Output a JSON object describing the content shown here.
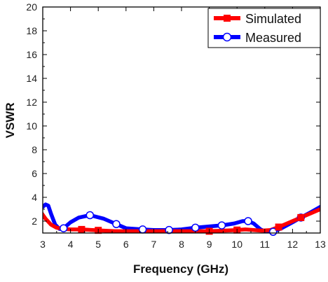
{
  "chart_data": {
    "type": "line",
    "title": "",
    "xlabel": "Frequency (GHz)",
    "ylabel": "VSWR",
    "xlim": [
      3,
      13
    ],
    "ylim": [
      1,
      20
    ],
    "x_ticks": [
      3,
      4,
      5,
      6,
      7,
      8,
      9,
      10,
      11,
      12,
      13
    ],
    "y_ticks": [
      2,
      4,
      6,
      8,
      10,
      12,
      14,
      16,
      18,
      20
    ],
    "grid": false,
    "legend_position": "top-right",
    "series": [
      {
        "name": "Simulated",
        "color": "#ff0000",
        "marker": "square",
        "x": [
          2.95,
          3.1,
          3.3,
          3.5,
          3.75,
          4.0,
          4.4,
          4.8,
          5.2,
          5.6,
          6.0,
          6.5,
          7.0,
          7.5,
          8.0,
          8.5,
          9.0,
          9.5,
          10.0,
          10.3,
          10.6,
          10.9,
          11.2,
          11.5,
          11.8,
          12.1,
          12.4,
          12.7,
          13.0
        ],
        "y": [
          2.7,
          2.2,
          1.7,
          1.45,
          1.35,
          1.3,
          1.3,
          1.25,
          1.2,
          1.15,
          1.15,
          1.15,
          1.15,
          1.15,
          1.15,
          1.15,
          1.15,
          1.2,
          1.25,
          1.3,
          1.25,
          1.2,
          1.25,
          1.5,
          1.8,
          2.1,
          2.4,
          2.7,
          3.0
        ],
        "marker_x": [
          4.4,
          5.0,
          9.0,
          10.0,
          11.5,
          12.3
        ]
      },
      {
        "name": "Measured",
        "color": "#0000ff",
        "marker": "circle",
        "x": [
          3.0,
          3.1,
          3.2,
          3.3,
          3.45,
          3.6,
          3.75,
          4.0,
          4.3,
          4.7,
          5.2,
          5.7,
          6.0,
          6.6,
          7.0,
          7.5,
          8.0,
          8.5,
          9.0,
          9.5,
          9.9,
          10.2,
          10.4,
          10.6,
          10.85,
          11.1,
          11.3,
          11.6,
          12.0,
          12.3,
          12.7,
          13.0
        ],
        "y": [
          3.2,
          3.4,
          3.3,
          2.6,
          1.7,
          1.35,
          1.4,
          1.9,
          2.3,
          2.5,
          2.2,
          1.7,
          1.4,
          1.3,
          1.25,
          1.25,
          1.3,
          1.45,
          1.55,
          1.65,
          1.8,
          2.0,
          2.0,
          1.8,
          1.3,
          1.05,
          1.1,
          1.4,
          1.9,
          2.3,
          2.8,
          3.2
        ],
        "marker_x": [
          3.75,
          4.7,
          5.65,
          6.6,
          7.55,
          8.5,
          9.45,
          10.4,
          11.3,
          12.3
        ]
      }
    ]
  }
}
